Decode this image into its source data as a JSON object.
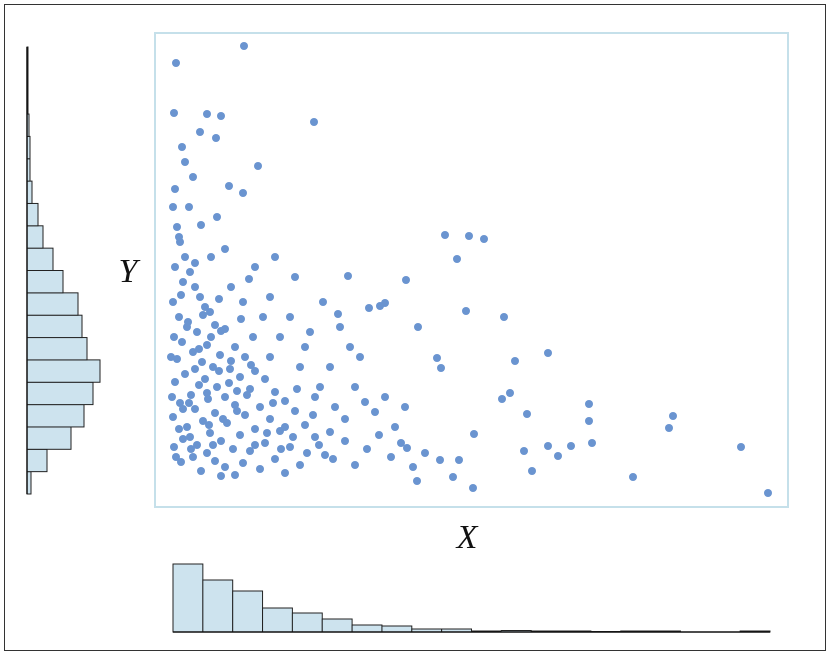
{
  "chart_data": [
    {
      "type": "scatter",
      "x_label": "X",
      "y_label": "Y",
      "color": "#6a94d0",
      "xlim": [
        0,
        633
      ],
      "ylim": [
        0,
        474
      ],
      "x": [
        89,
        21,
        159,
        19,
        52,
        66,
        103,
        61,
        74,
        88,
        290,
        314,
        329,
        302,
        251,
        193,
        311,
        349,
        263,
        393,
        360,
        282,
        286,
        355,
        347,
        434,
        518,
        514,
        372,
        434,
        437,
        393,
        416,
        586,
        369,
        403,
        377,
        478,
        613,
        318,
        262,
        66,
        298,
        252,
        319,
        304,
        285,
        225,
        214,
        230,
        183,
        18,
        22,
        25,
        30,
        20,
        35,
        28,
        40,
        45,
        18,
        50,
        55,
        24,
        33,
        60,
        70,
        42,
        19,
        27,
        52,
        80,
        38,
        65,
        90,
        22,
        47,
        58,
        75,
        100,
        30,
        85,
        110,
        20,
        44,
        62,
        95,
        120,
        36,
        70,
        53,
        130,
        25,
        80,
        105,
        40,
        140,
        60,
        90,
        18,
        115,
        48,
        72,
        150,
        32,
        100,
        125,
        55,
        85,
        160,
        28,
        66,
        110,
        42,
        135,
        78,
        95,
        52,
        170,
        38,
        120,
        60,
        88,
        145,
        70,
        105,
        46,
        130,
        80,
        58,
        35,
        24,
        68,
        82,
        34,
        92,
        50,
        64,
        76,
        44,
        56,
        32,
        86,
        48,
        64,
        26,
        76,
        94,
        40,
        56,
        70,
        24,
        46,
        62,
        34,
        20,
        38,
        30,
        27,
        45,
        140,
        120,
        155,
        175,
        165,
        180,
        150,
        135,
        115,
        100,
        175,
        190,
        200,
        210,
        220,
        230,
        240,
        250,
        195,
        205,
        185,
        168,
        125,
        145,
        160,
        130,
        115,
        98,
        108,
        88,
        16,
        17,
        19,
        21,
        26,
        36,
        54,
        74,
        96,
        118,
        142,
        158,
        28,
        40,
        52,
        66,
        82,
        100,
        112,
        126,
        138,
        152,
        164,
        178,
        190,
        200,
        212,
        224,
        236,
        246,
        258,
        270
      ],
      "values": [
        461,
        444,
        385,
        394,
        393,
        391,
        341,
        369,
        321,
        314,
        272,
        271,
        268,
        248,
        227,
        231,
        196,
        190,
        180,
        154,
        146,
        149,
        139,
        114,
        108,
        103,
        91,
        79,
        93,
        86,
        64,
        61,
        61,
        60,
        56,
        51,
        36,
        30,
        14,
        19,
        26,
        31,
        30,
        59,
        73,
        47,
        47,
        201,
        199,
        204,
        193,
        300,
        280,
        265,
        250,
        240,
        235,
        225,
        220,
        210,
        205,
        200,
        195,
        190,
        185,
        182,
        178,
        175,
        170,
        165,
        162,
        160,
        155,
        152,
        150,
        148,
        145,
        140,
        138,
        136,
        133,
        130,
        128,
        125,
        122,
        120,
        118,
        115,
        112,
        110,
        108,
        106,
        104,
        102,
        100,
        98,
        96,
        94,
        92,
        90,
        88,
        86,
        84,
        82,
        80,
        78,
        76,
        74,
        72,
        70,
        68,
        66,
        64,
        62,
        60,
        58,
        56,
        54,
        52,
        50,
        48,
        46,
        44,
        42,
        40,
        38,
        36,
        34,
        32,
        62,
        70,
        78,
        88,
        96,
        104,
        112,
        128,
        136,
        146,
        158,
        170,
        180,
        188,
        192,
        208,
        212,
        220,
        228,
        244,
        250,
        258,
        270,
        282,
        290,
        300,
        318,
        330,
        345,
        360,
        375,
        230,
        250,
        175,
        140,
        120,
        100,
        160,
        190,
        210,
        240,
        75,
        88,
        120,
        105,
        95,
        110,
        80,
        100,
        160,
        150,
        180,
        205,
        170,
        140,
        110,
        80,
        150,
        170,
        190,
        205,
        150,
        110,
        60,
        50,
        45,
        58,
        82,
        124,
        142,
        104,
        118,
        92,
        98,
        138,
        114,
        176,
        116,
        62,
        74,
        58,
        70,
        54,
        62,
        48,
        66,
        42,
        58,
        72,
        50,
        64,
        40,
        54
      ]
    },
    {
      "type": "histogram",
      "color": "#cde3ee",
      "bins": [
        18,
        47.85,
        77.7,
        107.55,
        137.4,
        167.25,
        197.1,
        226.95,
        256.8,
        286.65,
        316.5,
        346.35,
        376.2,
        406.05,
        435.9,
        465.75,
        495.6,
        525.45,
        555.3,
        585.15,
        615
      ],
      "values": [
        68,
        52,
        41,
        24,
        19,
        13,
        7,
        6,
        3,
        3,
        1,
        1.5,
        1,
        1,
        0.5,
        1,
        1,
        0,
        0,
        1
      ],
      "ylim": [
        0,
        70
      ]
    },
    {
      "type": "histogram",
      "orientation": "horizontal",
      "color": "#cde3ee",
      "bins": [
        13,
        35.35,
        57.7,
        80.05,
        102.4,
        124.75,
        147.1,
        169.45,
        191.8,
        214.15,
        236.5,
        258.85,
        281.2,
        303.55,
        325.9,
        348.25,
        370.6,
        392.95,
        415.3,
        437.65,
        460
      ],
      "values": [
        4,
        20,
        44,
        57,
        66,
        73,
        60,
        55,
        51,
        36,
        26,
        16,
        11,
        5,
        3,
        3,
        2,
        1,
        1,
        1
      ],
      "xlim": [
        0,
        80
      ]
    }
  ]
}
